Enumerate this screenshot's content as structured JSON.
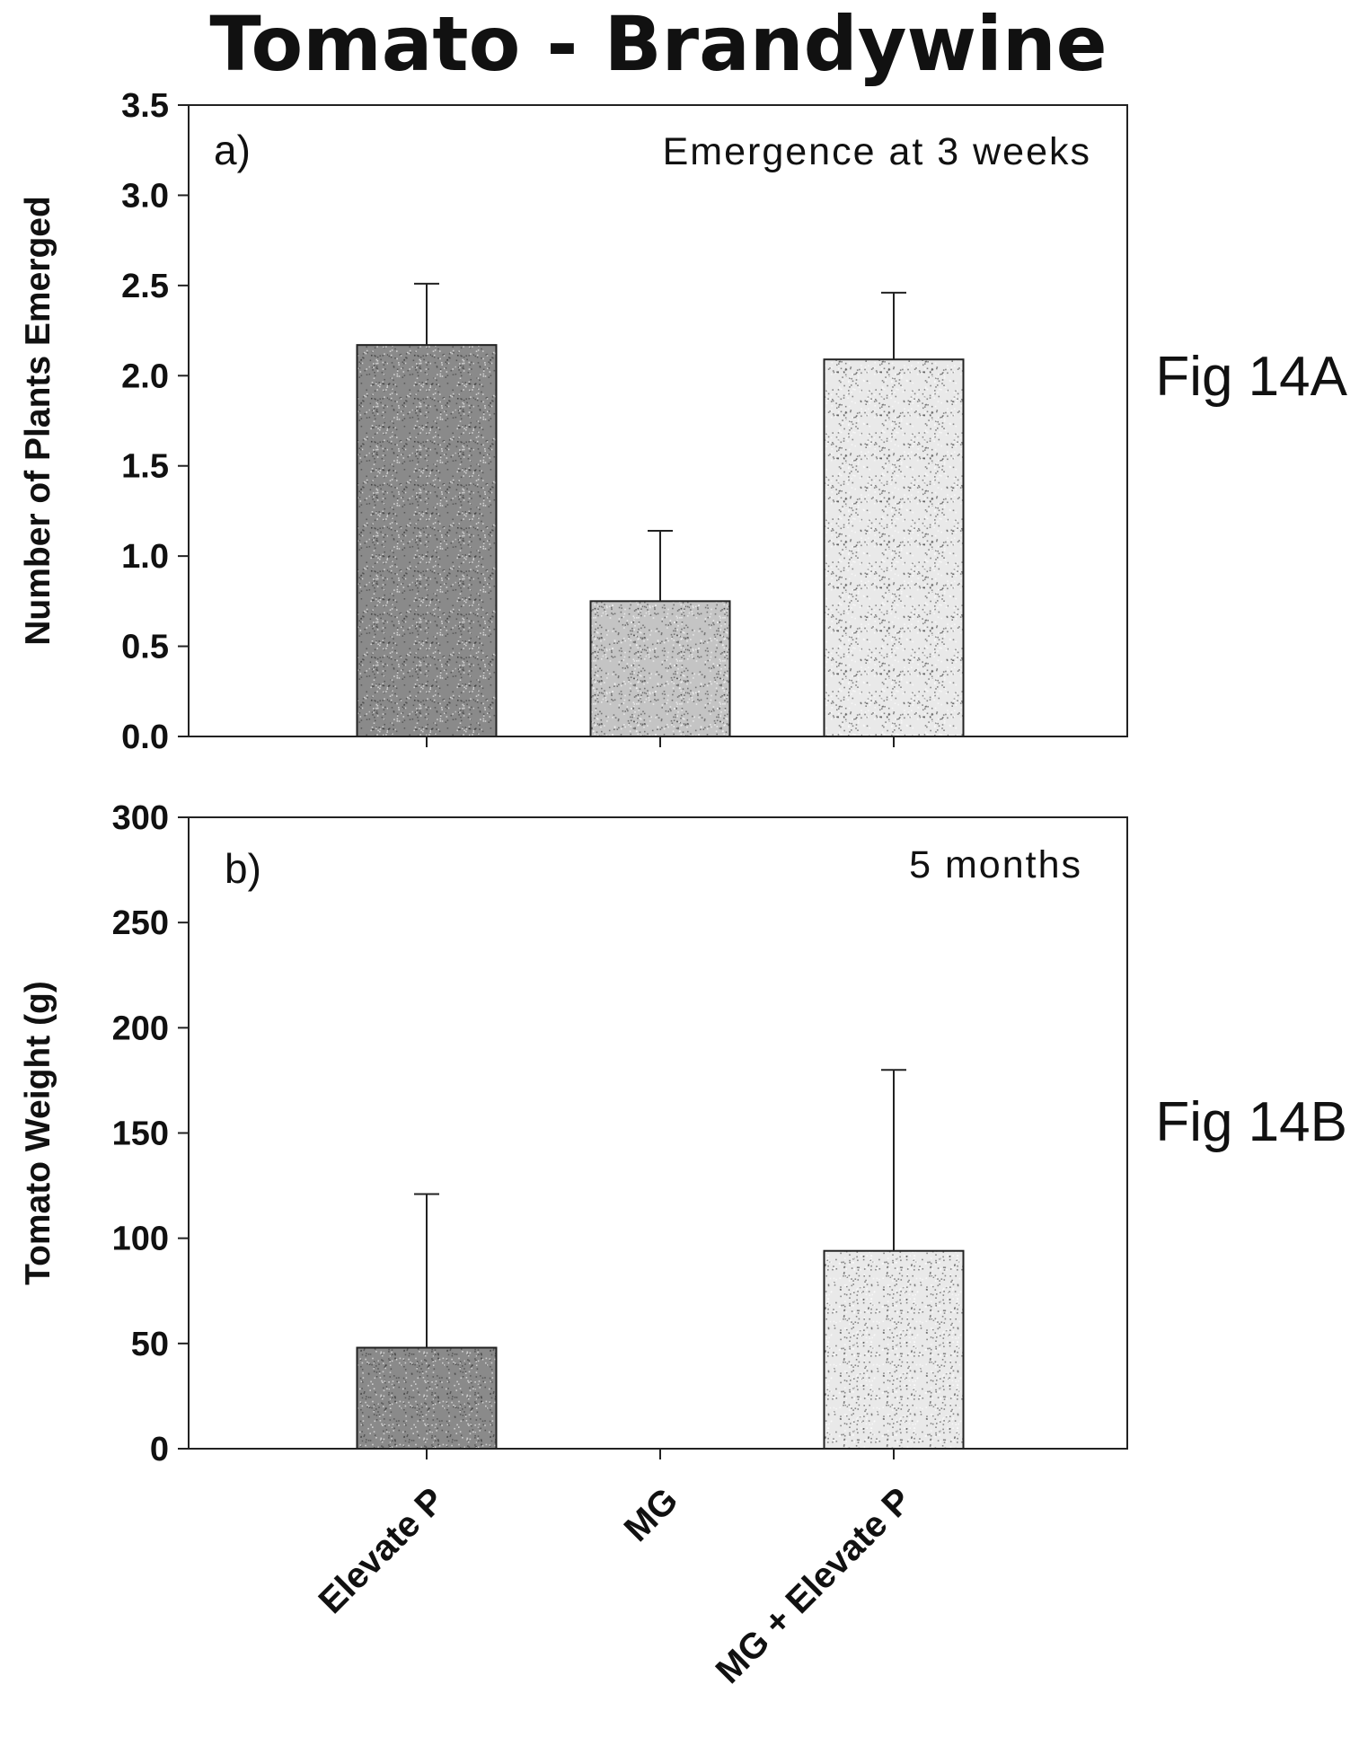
{
  "figure": {
    "title": "Tomato - Brandywine",
    "fig_labels": [
      "Fig 14A",
      "Fig 14B"
    ]
  },
  "chart_data": [
    {
      "type": "bar",
      "panel_label": "a)",
      "annotation": "Emergence at 3 weeks",
      "categories": [
        "Elevate P",
        "MG",
        "MG + Elevate P"
      ],
      "values": [
        2.17,
        0.75,
        2.09
      ],
      "error": [
        0.34,
        0.39,
        0.37
      ],
      "ylabel": "Number of Plants Emerged",
      "xlabel": "",
      "ylim": [
        0,
        3.5
      ],
      "yticks": [
        "0.0",
        "0.5",
        "1.0",
        "1.5",
        "2.0",
        "2.5",
        "3.0",
        "3.5"
      ],
      "bar_colors": [
        "#8a8a8a",
        "#c4c4c4",
        "#e9e9e9"
      ],
      "show_category_labels": false
    },
    {
      "type": "bar",
      "panel_label": "b)",
      "annotation": "5 months",
      "categories": [
        "Elevate P",
        "MG",
        "MG + Elevate P"
      ],
      "values": [
        48,
        0,
        94
      ],
      "error": [
        73,
        0,
        86
      ],
      "ylabel": "Tomato Weight (g)",
      "xlabel": "",
      "ylim": [
        0,
        300
      ],
      "yticks": [
        "0",
        "50",
        "100",
        "150",
        "200",
        "250",
        "300"
      ],
      "bar_colors": [
        "#8a8a8a",
        "#c4c4c4",
        "#e9e9e9"
      ],
      "show_category_labels": true
    }
  ]
}
